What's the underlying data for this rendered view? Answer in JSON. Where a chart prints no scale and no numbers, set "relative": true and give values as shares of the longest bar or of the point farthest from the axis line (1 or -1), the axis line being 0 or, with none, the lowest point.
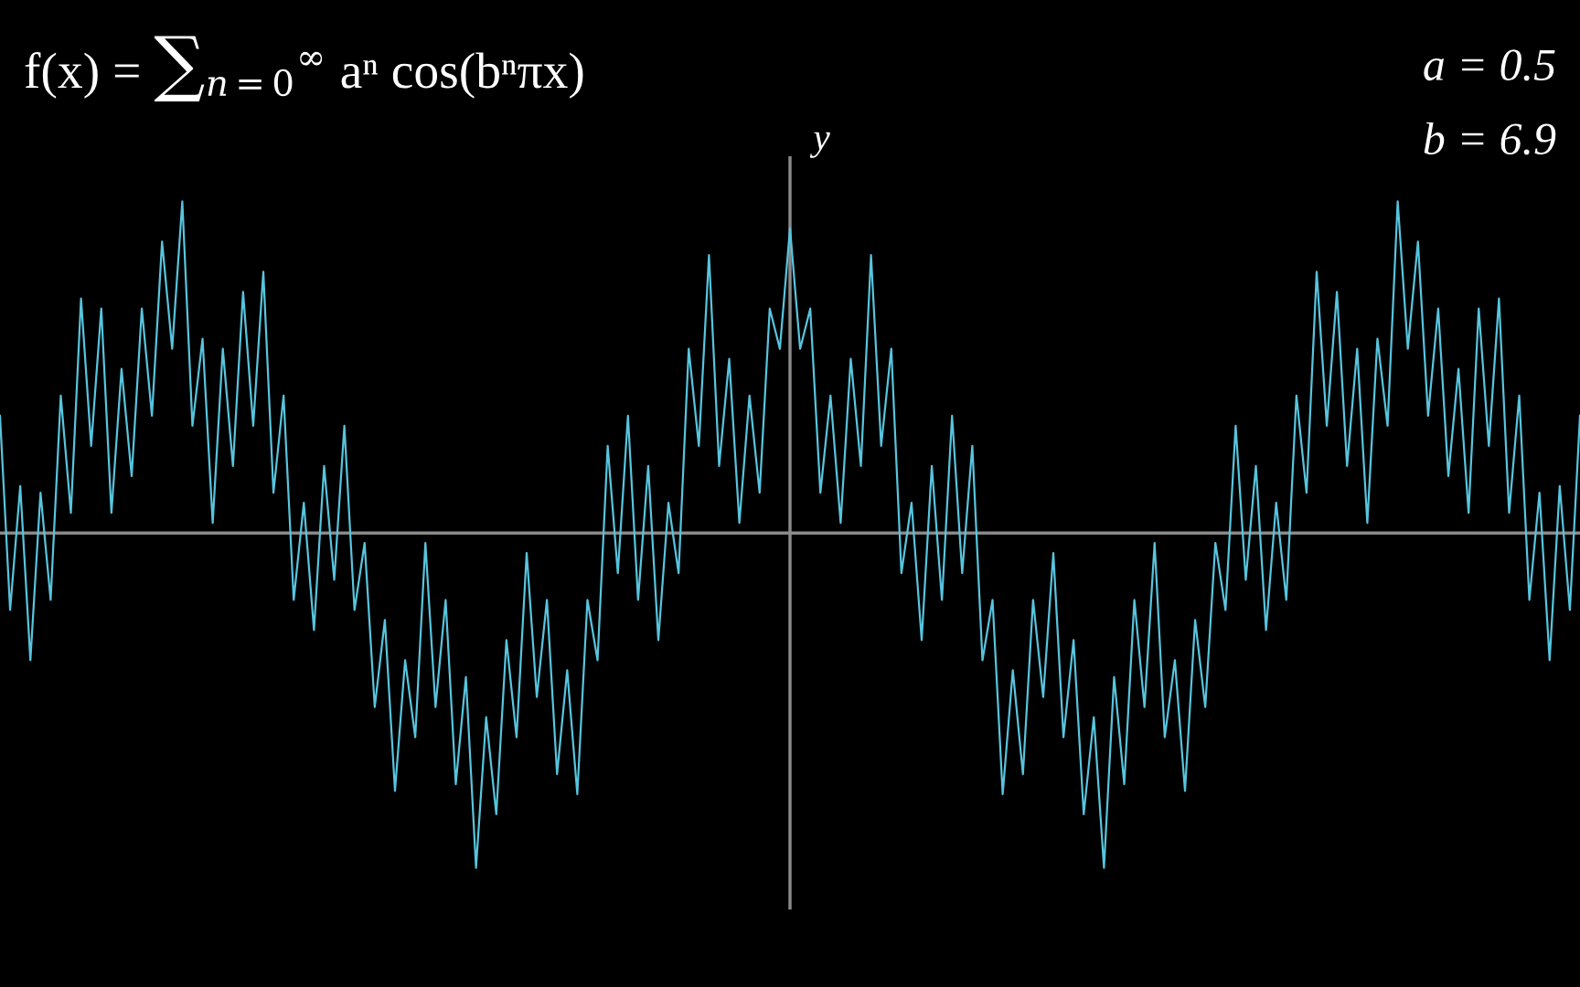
{
  "chart_data": {
    "type": "line",
    "title": "f(x) = ∑$_{n=0}$$^{∞}$ aⁿ cos(bⁿπx)",
    "ylabel": "y",
    "annotations": [
      "a = 0.5",
      "b = 6.9"
    ],
    "relative": true,
    "categories": [
      null,
      null,
      null,
      null,
      null,
      null,
      null,
      null,
      null,
      null,
      null,
      null,
      null,
      null,
      null,
      null,
      null,
      null,
      null,
      null,
      null,
      null,
      null,
      null,
      null,
      null,
      null,
      null,
      null,
      null,
      null,
      null,
      null,
      null,
      null,
      null,
      null,
      null,
      null,
      null,
      null,
      null,
      null,
      null,
      null,
      null,
      null,
      null,
      null,
      null,
      null,
      null,
      null,
      null,
      null,
      null,
      null,
      null,
      null,
      null,
      null,
      null,
      null,
      null,
      null,
      null,
      null,
      null,
      null,
      null,
      null,
      null,
      null,
      null,
      null,
      null,
      null,
      null,
      null,
      null,
      null,
      null,
      null,
      null,
      null,
      null,
      null,
      null,
      null,
      null,
      null,
      null,
      null,
      null,
      null,
      null,
      null,
      null,
      null,
      null,
      null,
      null,
      null,
      null,
      null,
      null,
      null,
      null,
      null,
      null,
      null,
      null,
      null,
      null,
      null,
      null,
      null,
      null,
      null,
      null,
      null,
      null,
      null,
      null,
      null,
      null,
      null,
      null,
      null,
      null,
      null,
      null,
      null,
      null,
      null,
      null,
      null,
      null,
      null,
      null,
      null,
      null,
      null,
      null,
      null,
      null,
      null,
      null,
      null,
      null,
      null,
      null,
      null,
      null,
      null,
      null,
      null
    ],
    "series": [
      {
        "color": "#58c4dd",
        "values": [
          0.35,
          -0.23,
          0.14,
          -0.38,
          0.12,
          -0.2,
          0.41,
          0.06,
          0.7,
          0.26,
          0.67,
          0.06,
          0.49,
          0.17,
          0.67,
          0.35,
          0.87,
          0.55,
          0.99,
          0.32,
          0.58,
          0.03,
          0.55,
          0.2,
          0.72,
          0.32,
          0.78,
          0.12,
          0.41,
          -0.2,
          0.09,
          -0.29,
          0.2,
          -0.14,
          0.32,
          -0.23,
          -0.03,
          -0.52,
          -0.26,
          -0.77,
          -0.38,
          -0.61,
          -0.03,
          -0.52,
          -0.2,
          -0.75,
          -0.43,
          -1.0,
          -0.55,
          -0.84,
          -0.32,
          -0.61,
          -0.06,
          -0.49,
          -0.2,
          -0.72,
          -0.41,
          -0.78,
          -0.2,
          -0.38,
          0.26,
          -0.12,
          0.35,
          -0.2,
          0.2,
          -0.32,
          0.09,
          -0.12,
          0.55,
          0.26,
          0.83,
          0.2,
          0.52,
          0.03,
          0.41,
          0.12,
          0.67,
          0.55,
          0.91,
          0.55,
          0.67,
          0.12,
          0.41,
          0.03,
          0.52,
          0.2,
          0.83,
          0.26,
          0.55,
          -0.12,
          0.09,
          -0.32,
          0.2,
          -0.2,
          0.35,
          -0.12,
          0.26,
          -0.38,
          -0.2,
          -0.78,
          -0.41,
          -0.72,
          -0.2,
          -0.49,
          -0.06,
          -0.61,
          -0.32,
          -0.84,
          -0.55,
          -1.0,
          -0.43,
          -0.75,
          -0.2,
          -0.52,
          -0.03,
          -0.61,
          -0.38,
          -0.77,
          -0.26,
          -0.52,
          -0.03,
          -0.23,
          0.32,
          -0.14,
          0.2,
          -0.29,
          0.09,
          -0.2,
          0.41,
          0.12,
          0.78,
          0.32,
          0.72,
          0.2,
          0.55,
          0.03,
          0.58,
          0.32,
          0.99,
          0.55,
          0.87,
          0.35,
          0.67,
          0.17,
          0.49,
          0.06,
          0.67,
          0.26,
          0.7,
          0.06,
          0.41,
          -0.2,
          0.12,
          -0.38,
          0.14,
          -0.23,
          0.35
        ]
      }
    ],
    "grid": false,
    "legend": false
  }
}
